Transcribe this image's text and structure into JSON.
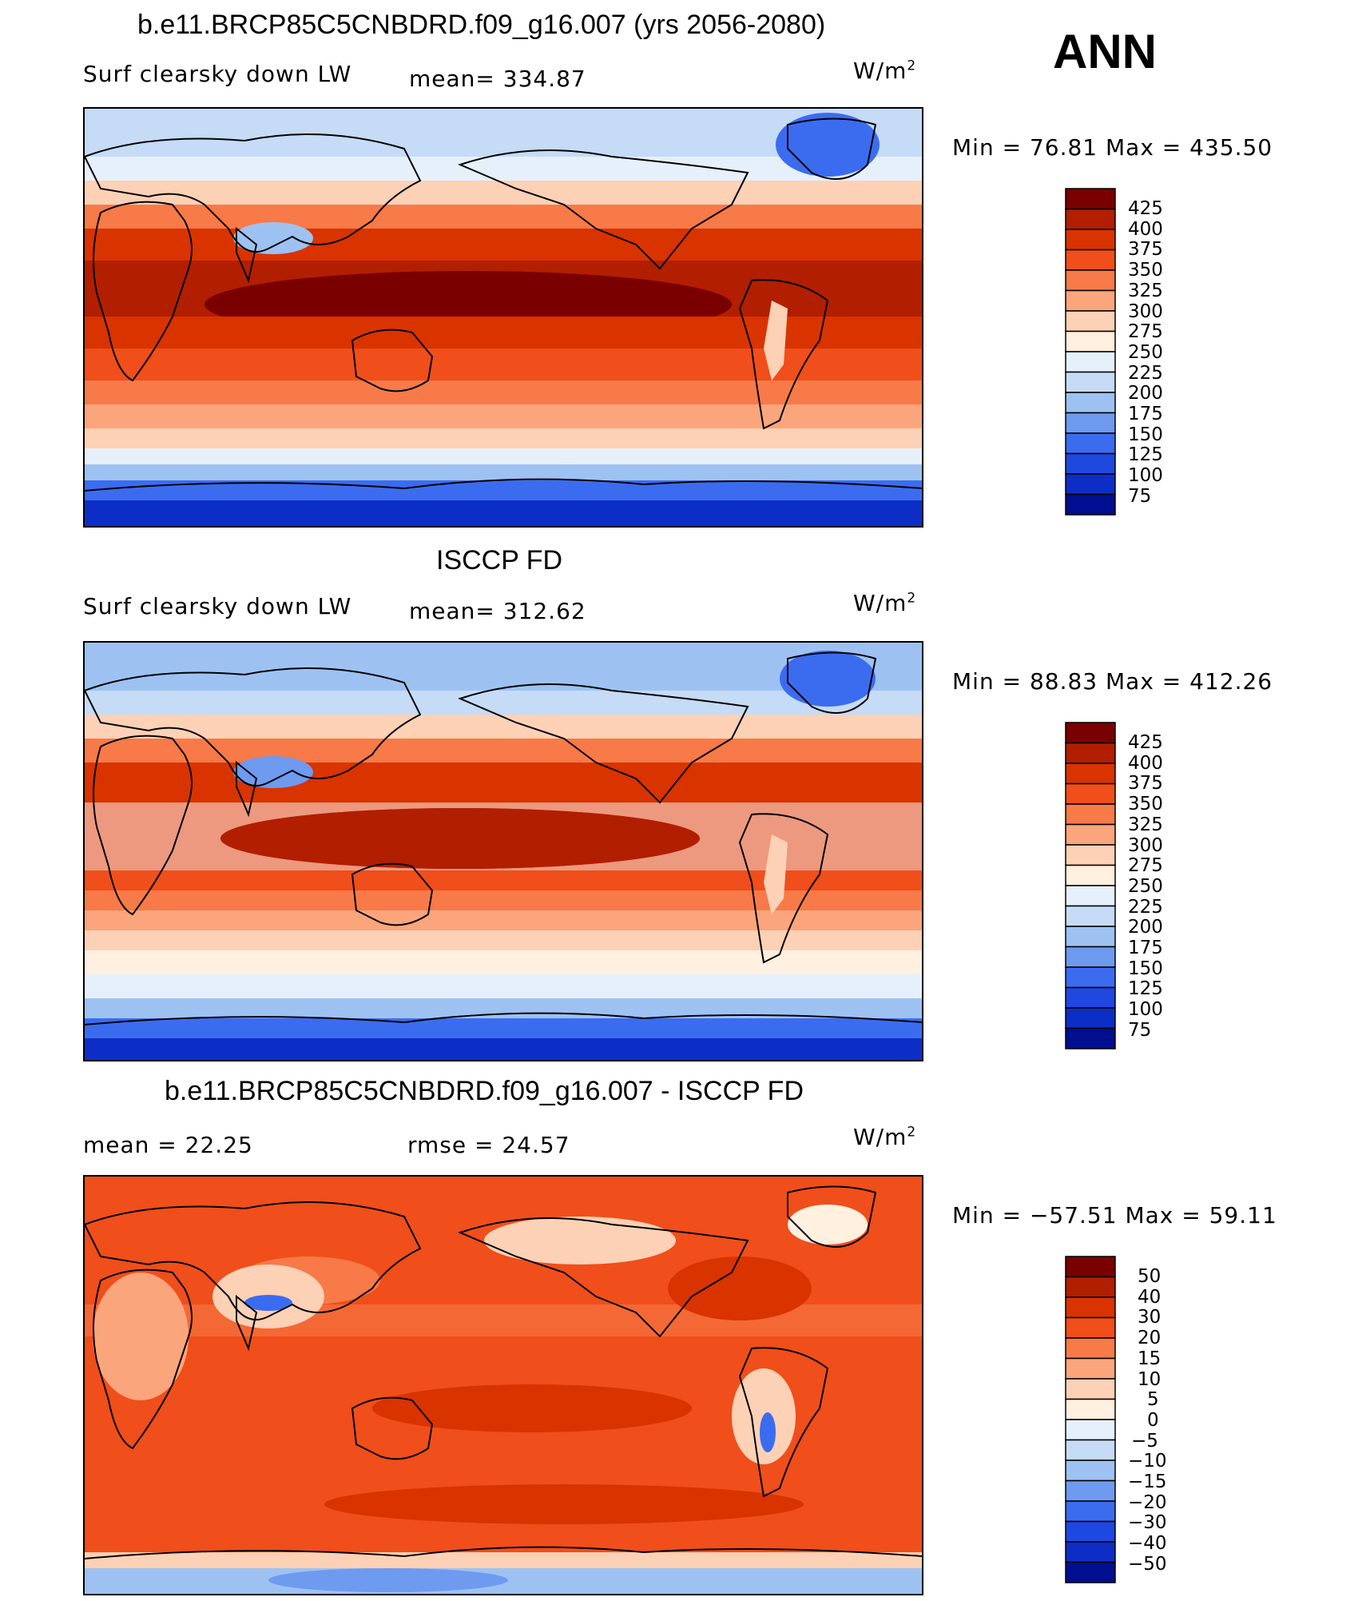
{
  "season": "ANN",
  "colors": {
    "abs_scale": [
      "#7a0000",
      "#b21e00",
      "#d93300",
      "#f04e1a",
      "#f77a48",
      "#fba57c",
      "#fdd1b5",
      "#fff0e0",
      "#e6f0fb",
      "#c5dbf6",
      "#9dc2f2",
      "#6e9af0",
      "#3b6cf0",
      "#1e48e0",
      "#0d2ec6",
      "#000f90"
    ],
    "diff_scale": [
      "#7a0000",
      "#b21e00",
      "#d93300",
      "#f04e1a",
      "#f77a48",
      "#fba57c",
      "#fdd1b5",
      "#fff0e0",
      "#e6f0fb",
      "#c5dbf6",
      "#9dc2f2",
      "#6e9af0",
      "#3b6cf0",
      "#1e48e0",
      "#0d2ec6",
      "#000f90"
    ],
    "coast": "#000000"
  },
  "panels": [
    {
      "title": "b.e11.BRCP85C5CNBDRD.f09_g16.007 (yrs 2056-2080)",
      "left_label": "Surf clearsky down LW",
      "mid_label": "mean= 334.87",
      "units_base": "W/m",
      "units_exp": "2",
      "minmax": "Min =   76.81  Max  =  435.50",
      "colorbar_labels": [
        "425",
        "400",
        "375",
        "350",
        "325",
        "300",
        "275",
        "250",
        "225",
        "200",
        "175",
        "150",
        "125",
        "100",
        "75"
      ]
    },
    {
      "title": "ISCCP FD",
      "left_label": "Surf clearsky down LW",
      "mid_label": "mean= 312.62",
      "units_base": "W/m",
      "units_exp": "2",
      "minmax": "Min =   88.83  Max  =  412.26",
      "colorbar_labels": [
        "425",
        "400",
        "375",
        "350",
        "325",
        "300",
        "275",
        "250",
        "225",
        "200",
        "175",
        "150",
        "125",
        "100",
        "75"
      ]
    },
    {
      "title": "b.e11.BRCP85C5CNBDRD.f09_g16.007 - ISCCP FD",
      "left_label": "mean =   22.25",
      "mid_label": "rmse =   24.57",
      "units_base": "W/m",
      "units_exp": "2",
      "minmax": "Min = −57.51  Max =    59.11",
      "colorbar_labels": [
        "50",
        "40",
        "30",
        "20",
        "15",
        "10",
        "5",
        "0",
        "−5",
        "−10",
        "−15",
        "−20",
        "−30",
        "−40",
        "−50"
      ]
    }
  ],
  "chart_data": {
    "type": "heatmap",
    "maps": [
      {
        "title": "b.e11.BRCP85C5CNBDRD.f09_g16.007 (yrs 2056-2080)",
        "variable": "Surf clearsky down LW",
        "units": "W/m2",
        "mean": 334.87,
        "min": 76.81,
        "max": 435.5,
        "levels": [
          75,
          100,
          125,
          150,
          175,
          200,
          225,
          250,
          275,
          300,
          325,
          350,
          375,
          400,
          425
        ]
      },
      {
        "title": "ISCCP FD",
        "variable": "Surf clearsky down LW",
        "units": "W/m2",
        "mean": 312.62,
        "min": 88.83,
        "max": 412.26,
        "levels": [
          75,
          100,
          125,
          150,
          175,
          200,
          225,
          250,
          275,
          300,
          325,
          350,
          375,
          400,
          425
        ]
      },
      {
        "title": "b.e11.BRCP85C5CNBDRD.f09_g16.007 - ISCCP FD",
        "units": "W/m2",
        "mean": 22.25,
        "rmse": 24.57,
        "min": -57.51,
        "max": 59.11,
        "levels": [
          -50,
          -40,
          -30,
          -20,
          -15,
          -10,
          -5,
          0,
          5,
          10,
          15,
          20,
          30,
          40,
          50
        ]
      }
    ]
  }
}
